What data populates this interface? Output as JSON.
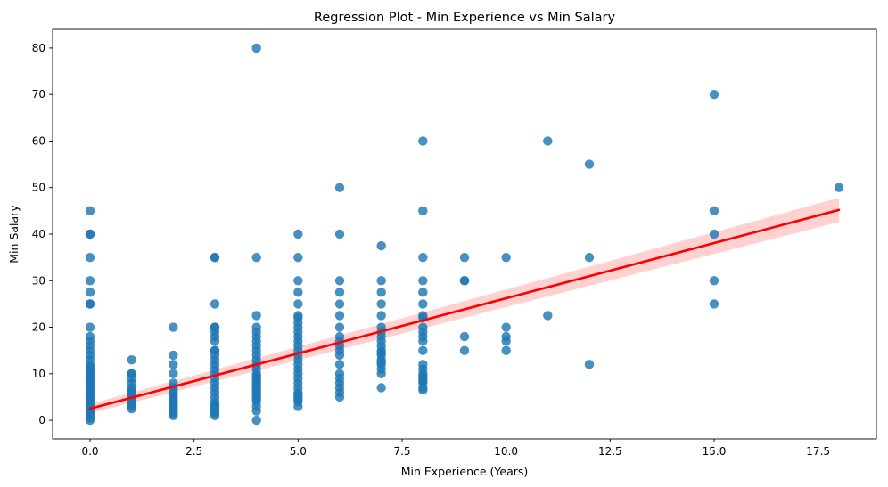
{
  "chart_data": {
    "type": "scatter",
    "title": "Regression Plot - Min Experience vs Min Salary",
    "xlabel": "Min Experience (Years)",
    "ylabel": "Min Salary",
    "xlim": [
      -0.9,
      18.9
    ],
    "ylim": [
      -4,
      84
    ],
    "xticks": [
      0.0,
      2.5,
      5.0,
      7.5,
      10.0,
      12.5,
      15.0,
      17.5
    ],
    "xtick_labels": [
      "0.0",
      "2.5",
      "5.0",
      "7.5",
      "10.0",
      "12.5",
      "15.0",
      "17.5"
    ],
    "yticks": [
      0,
      10,
      20,
      30,
      40,
      50,
      60,
      70,
      80
    ],
    "ytick_labels": [
      "0",
      "10",
      "20",
      "30",
      "40",
      "50",
      "60",
      "70",
      "80"
    ],
    "grid": false,
    "colors": {
      "points": "#1f77b4",
      "line": "#ff0000",
      "band": "#ffb3b3"
    },
    "series": [
      {
        "x": [
          0,
          0,
          0,
          0,
          0,
          0,
          0,
          0,
          0,
          0,
          0,
          0,
          0,
          0,
          0,
          0,
          0,
          0,
          0,
          0,
          0,
          0,
          0,
          0,
          0,
          0,
          0,
          0,
          0,
          0,
          0,
          0,
          0,
          0,
          0,
          0,
          0,
          0,
          0,
          0,
          1,
          1,
          1,
          1,
          1,
          1,
          1,
          1,
          1,
          1,
          1,
          1,
          1,
          1,
          1,
          2,
          2,
          2,
          2,
          2,
          2,
          2,
          2,
          2,
          2,
          2,
          2,
          2,
          2,
          2,
          2,
          2,
          2,
          3,
          3,
          3,
          3,
          3,
          3,
          3,
          3,
          3,
          3,
          3,
          3,
          3,
          3,
          3,
          3,
          3,
          3,
          3,
          3,
          3,
          3,
          3,
          3,
          3,
          3,
          3,
          4,
          4,
          4,
          4,
          4,
          4,
          4,
          4,
          4,
          4,
          4,
          4,
          4,
          4,
          4,
          4,
          4,
          4,
          4,
          4,
          4,
          4,
          4,
          4,
          4,
          4,
          4,
          4,
          4,
          5,
          5,
          5,
          5,
          5,
          5,
          5,
          5,
          5,
          5,
          5,
          5,
          5,
          5,
          5,
          5,
          5,
          5,
          5,
          5,
          5,
          5,
          5,
          5,
          5,
          5,
          5,
          5,
          6,
          6,
          6,
          6,
          6,
          6,
          6,
          6,
          6,
          6,
          6,
          6,
          6,
          6,
          6,
          6,
          6,
          6,
          6,
          7,
          7,
          7,
          7,
          7,
          7,
          7,
          7,
          7,
          7,
          7,
          7,
          7,
          7,
          7,
          7,
          7,
          7,
          7,
          8,
          8,
          8,
          8,
          8,
          8,
          8,
          8,
          8,
          8,
          8,
          8,
          8,
          8,
          8,
          8,
          8,
          8,
          8,
          8,
          8,
          8,
          9,
          9,
          9,
          9,
          9,
          10,
          10,
          10,
          10,
          10,
          11,
          11,
          12,
          12,
          12,
          15,
          15,
          15,
          15,
          15,
          18
        ],
        "y": [
          0,
          0.5,
          1,
          1.5,
          2,
          2.5,
          3,
          3.5,
          4,
          4.5,
          5,
          5.5,
          6,
          6.5,
          7,
          7.5,
          8,
          8.5,
          9,
          9.5,
          10,
          10.5,
          11,
          11.5,
          12,
          13,
          14,
          15,
          16,
          17,
          18,
          20,
          25,
          27.5,
          30,
          35,
          40,
          40,
          45,
          25,
          2.5,
          3,
          3.5,
          4,
          4.5,
          5,
          5.5,
          6,
          6.5,
          7,
          8,
          9,
          10,
          10,
          13,
          1,
          1.5,
          2,
          2.5,
          3,
          3.5,
          4,
          4.5,
          5,
          5.5,
          6,
          6.5,
          7,
          8,
          10,
          12,
          14,
          20,
          1,
          1.5,
          2,
          2.5,
          3,
          3.5,
          4,
          5,
          6,
          7,
          8,
          9,
          10,
          11,
          12,
          13,
          14,
          15,
          17,
          18,
          19,
          20,
          25,
          35,
          35,
          20,
          15,
          0,
          2,
          3,
          4,
          5,
          6,
          7,
          8,
          9,
          10,
          11,
          12,
          13,
          14,
          15,
          16,
          17,
          18,
          19,
          20,
          22.5,
          35,
          80,
          4.5,
          5.5,
          6.5,
          7.5,
          8.5,
          9.5,
          3,
          4,
          5,
          6,
          7,
          8,
          9,
          10,
          11,
          12,
          13,
          14,
          15,
          16,
          17,
          18,
          19,
          20,
          21,
          22,
          22.5,
          25,
          27.5,
          30,
          35,
          40,
          4.5,
          5.5,
          5,
          6,
          7,
          8,
          9,
          10,
          12,
          14,
          15,
          17,
          18,
          20,
          22.5,
          25,
          27.5,
          30,
          40,
          50,
          16,
          7,
          10,
          11,
          12,
          13,
          14,
          15,
          16,
          17,
          18,
          19,
          20,
          22.5,
          25,
          27.5,
          30,
          37.5,
          12.5,
          14.5,
          6.5,
          7,
          8,
          9,
          10,
          11,
          12,
          15,
          17,
          18,
          19,
          20,
          22,
          22.5,
          25,
          27.5,
          30,
          35,
          45,
          60,
          9.5,
          8.5,
          15,
          18,
          30,
          35,
          30,
          15,
          17,
          18,
          20,
          35,
          22.5,
          60,
          12,
          35,
          55,
          25,
          30,
          40,
          45,
          70,
          50
        ]
      }
    ],
    "regression": {
      "x": [
        0,
        18
      ],
      "y": [
        2.5,
        45.2
      ],
      "ci_low": [
        1.5,
        42.6
      ],
      "ci_high": [
        3.5,
        47.8
      ]
    }
  }
}
